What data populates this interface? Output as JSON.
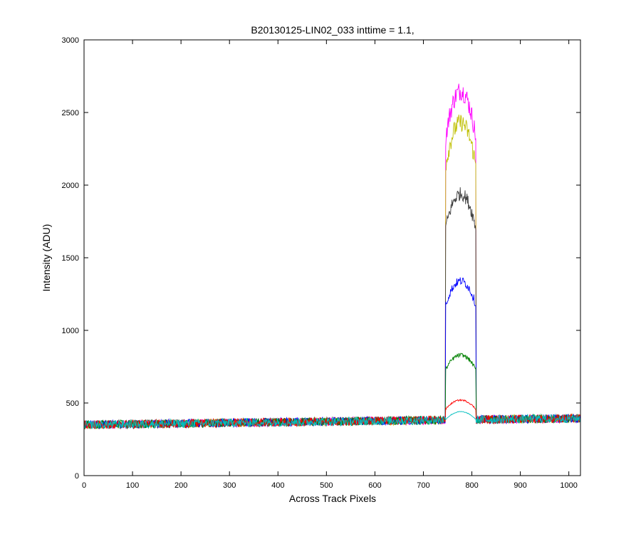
{
  "chart_data": {
    "type": "line",
    "title": "B20130125-LIN02_033 inttime = 1.1,",
    "xlabel": "Across Track Pixels",
    "ylabel": "Intensity (ADU)",
    "xlim": [
      0,
      1024
    ],
    "ylim": [
      0,
      3000
    ],
    "xticks": [
      0,
      100,
      200,
      300,
      400,
      500,
      600,
      700,
      800,
      900,
      1000
    ],
    "yticks": [
      0,
      500,
      1000,
      1500,
      2000,
      2500,
      3000
    ],
    "grid": false,
    "legend": "none",
    "baseline": {
      "x": [
        0,
        1024
      ],
      "y": [
        350,
        395
      ]
    },
    "peak_region": {
      "x_start": 746,
      "x_end": 808
    },
    "series": [
      {
        "color": "#ff00ff",
        "peak_top": 2650,
        "baseline_offset": 0
      },
      {
        "color": "#bfbf00",
        "peak_top": 2430,
        "baseline_offset": 0
      },
      {
        "color": "#404040",
        "peak_top": 1940,
        "baseline_offset": 0
      },
      {
        "color": "#0000ff",
        "peak_top": 1340,
        "baseline_offset": 0
      },
      {
        "color": "#008000",
        "peak_top": 830,
        "baseline_offset": 0
      },
      {
        "color": "#ff0000",
        "peak_top": 520,
        "baseline_offset": 0
      },
      {
        "color": "#00bfbf",
        "peak_top": 440,
        "baseline_offset": 0
      }
    ]
  }
}
